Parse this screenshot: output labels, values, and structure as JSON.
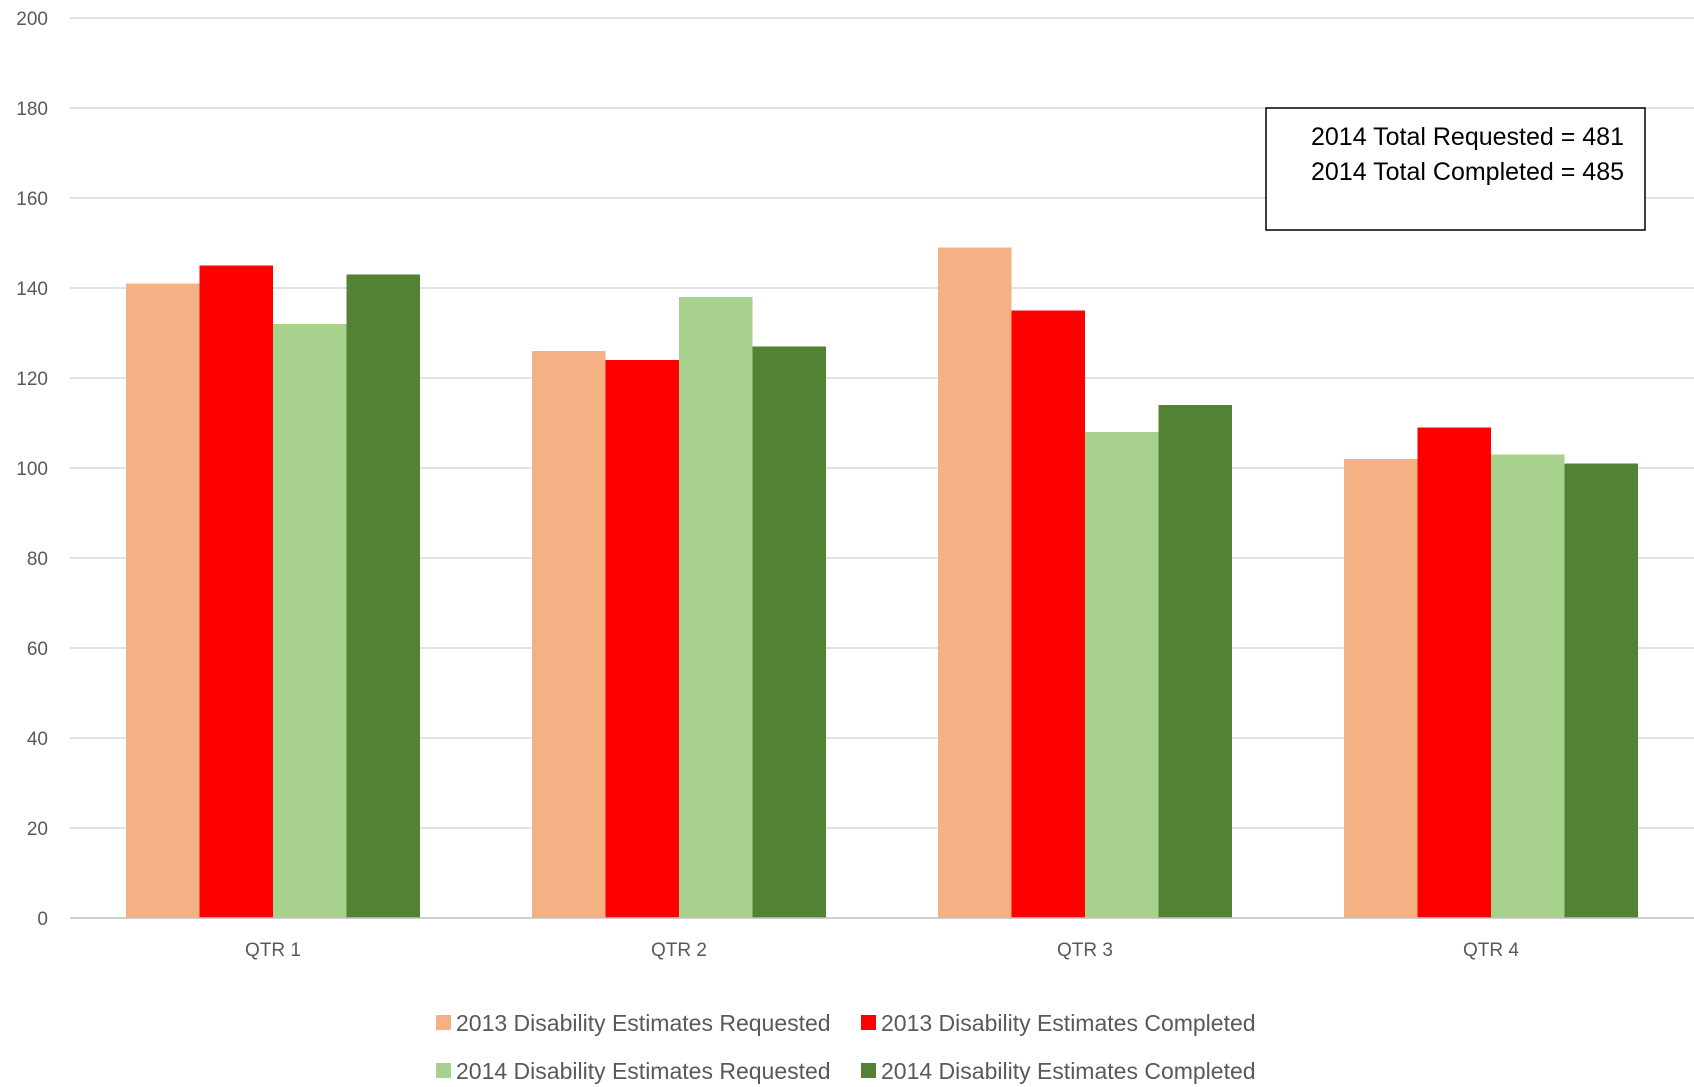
{
  "chart_data": {
    "type": "bar",
    "title": "",
    "xlabel": "",
    "ylabel": "",
    "categories": [
      "QTR 1",
      "QTR 2",
      "QTR 3",
      "QTR 4"
    ],
    "ylim": [
      0,
      200
    ],
    "yticks": [
      0,
      20,
      40,
      60,
      80,
      100,
      120,
      140,
      160,
      180,
      200
    ],
    "grid": true,
    "legend_position": "bottom",
    "series": [
      {
        "name": "2013 Disability Estimates Requested",
        "color": "#F4B183",
        "values": [
          141,
          126,
          149,
          102
        ]
      },
      {
        "name": "2013 Disability Estimates Completed",
        "color": "#FF0000",
        "values": [
          145,
          124,
          135,
          109
        ]
      },
      {
        "name": "2014 Disability Estimates Requested",
        "color": "#A9D18E",
        "values": [
          132,
          138,
          108,
          103
        ]
      },
      {
        "name": "2014 Disability Estimates Completed",
        "color": "#548235",
        "values": [
          143,
          127,
          114,
          101
        ]
      }
    ],
    "annotations": [
      "2014 Total Requested = 481",
      "2014 Total Completed = 485"
    ]
  }
}
